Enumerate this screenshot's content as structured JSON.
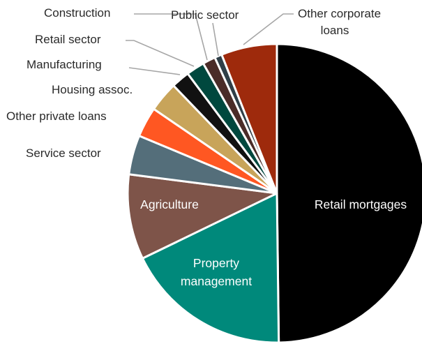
{
  "chart_data": {
    "type": "pie",
    "title": "",
    "unit": "%",
    "start_angle_deg": 0,
    "direction": "clockwise",
    "slices": [
      {
        "label": "Retail mortgages",
        "value": 50.3,
        "color": "#000000",
        "label_position": "inside"
      },
      {
        "label": "Property management",
        "value": 18.2,
        "color": "#00897b",
        "label_position": "inside"
      },
      {
        "label": "Agriculture",
        "value": 9.3,
        "color": "#7e5449",
        "label_position": "inside"
      },
      {
        "label": "Service sector",
        "value": 4.3,
        "color": "#546e7a",
        "label_position": "outside"
      },
      {
        "label": "Other private loans",
        "value": 3.3,
        "color": "#ff5722",
        "label_position": "outside"
      },
      {
        "label": "Housing assoc.",
        "value": 3.3,
        "color": "#c8a45a",
        "label_position": "outside"
      },
      {
        "label": "Manufacturing",
        "value": 2.0,
        "color": "#111111",
        "label_position": "outside"
      },
      {
        "label": "Retail sector",
        "value": 2.0,
        "color": "#00483e",
        "label_position": "outside"
      },
      {
        "label": "Construction",
        "value": 1.4,
        "color": "#4a2c28",
        "label_position": "outside"
      },
      {
        "label": "Public sector",
        "value": 0.8,
        "color": "#2f3f48",
        "label_position": "outside"
      },
      {
        "label": "Other corporate loans",
        "value": 6.1,
        "color": "#9e2a0c",
        "label_position": "outside"
      }
    ]
  }
}
